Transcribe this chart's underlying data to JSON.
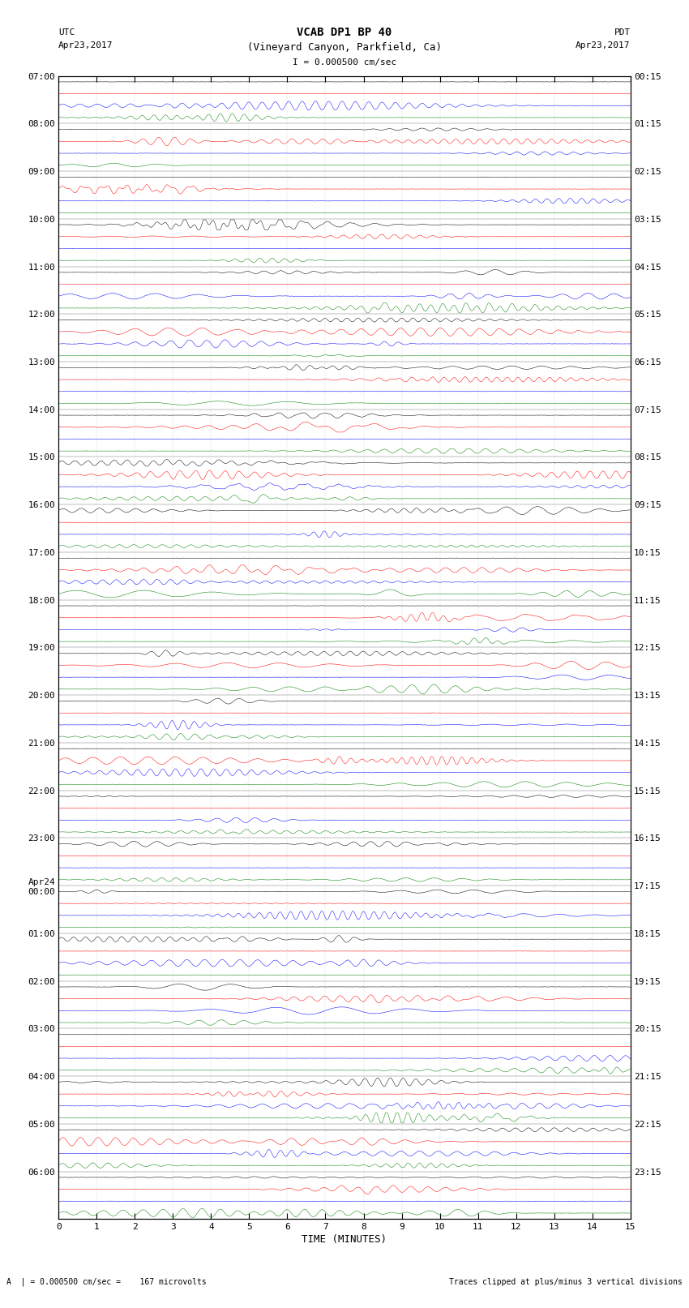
{
  "title_line1": "VCAB DP1 BP 40",
  "title_line2": "(Vineyard Canyon, Parkfield, Ca)",
  "scale_text": "I = 0.000500 cm/sec",
  "left_label": "UTC",
  "left_date": "Apr23,2017",
  "right_label": "PDT",
  "right_date": "Apr23,2017",
  "bottom_label": "TIME (MINUTES)",
  "bottom_note_left": "A  | = 0.000500 cm/sec =    167 microvolts",
  "bottom_note_right": "Traces clipped at plus/minus 3 vertical divisions",
  "xlabel_ticks": [
    0,
    1,
    2,
    3,
    4,
    5,
    6,
    7,
    8,
    9,
    10,
    11,
    12,
    13,
    14,
    15
  ],
  "utc_times": [
    "07:00",
    "08:00",
    "09:00",
    "10:00",
    "11:00",
    "12:00",
    "13:00",
    "14:00",
    "15:00",
    "16:00",
    "17:00",
    "18:00",
    "19:00",
    "20:00",
    "21:00",
    "22:00",
    "23:00",
    "Apr24\n00:00",
    "01:00",
    "02:00",
    "03:00",
    "04:00",
    "05:00",
    "06:00"
  ],
  "pdt_times": [
    "00:15",
    "01:15",
    "02:15",
    "03:15",
    "04:15",
    "05:15",
    "06:15",
    "07:15",
    "08:15",
    "09:15",
    "10:15",
    "11:15",
    "12:15",
    "13:15",
    "14:15",
    "15:15",
    "16:15",
    "17:15",
    "18:15",
    "19:15",
    "20:15",
    "21:15",
    "22:15",
    "23:15"
  ],
  "colors": [
    "black",
    "red",
    "blue",
    "green"
  ],
  "bg_color": "white",
  "n_rows": 96,
  "n_channels": 4,
  "n_hour_groups": 24,
  "duration_minutes": 15,
  "fig_width": 8.5,
  "fig_height": 16.13,
  "dpi": 100,
  "noise_amp": 0.06,
  "clip_level": 3.0
}
